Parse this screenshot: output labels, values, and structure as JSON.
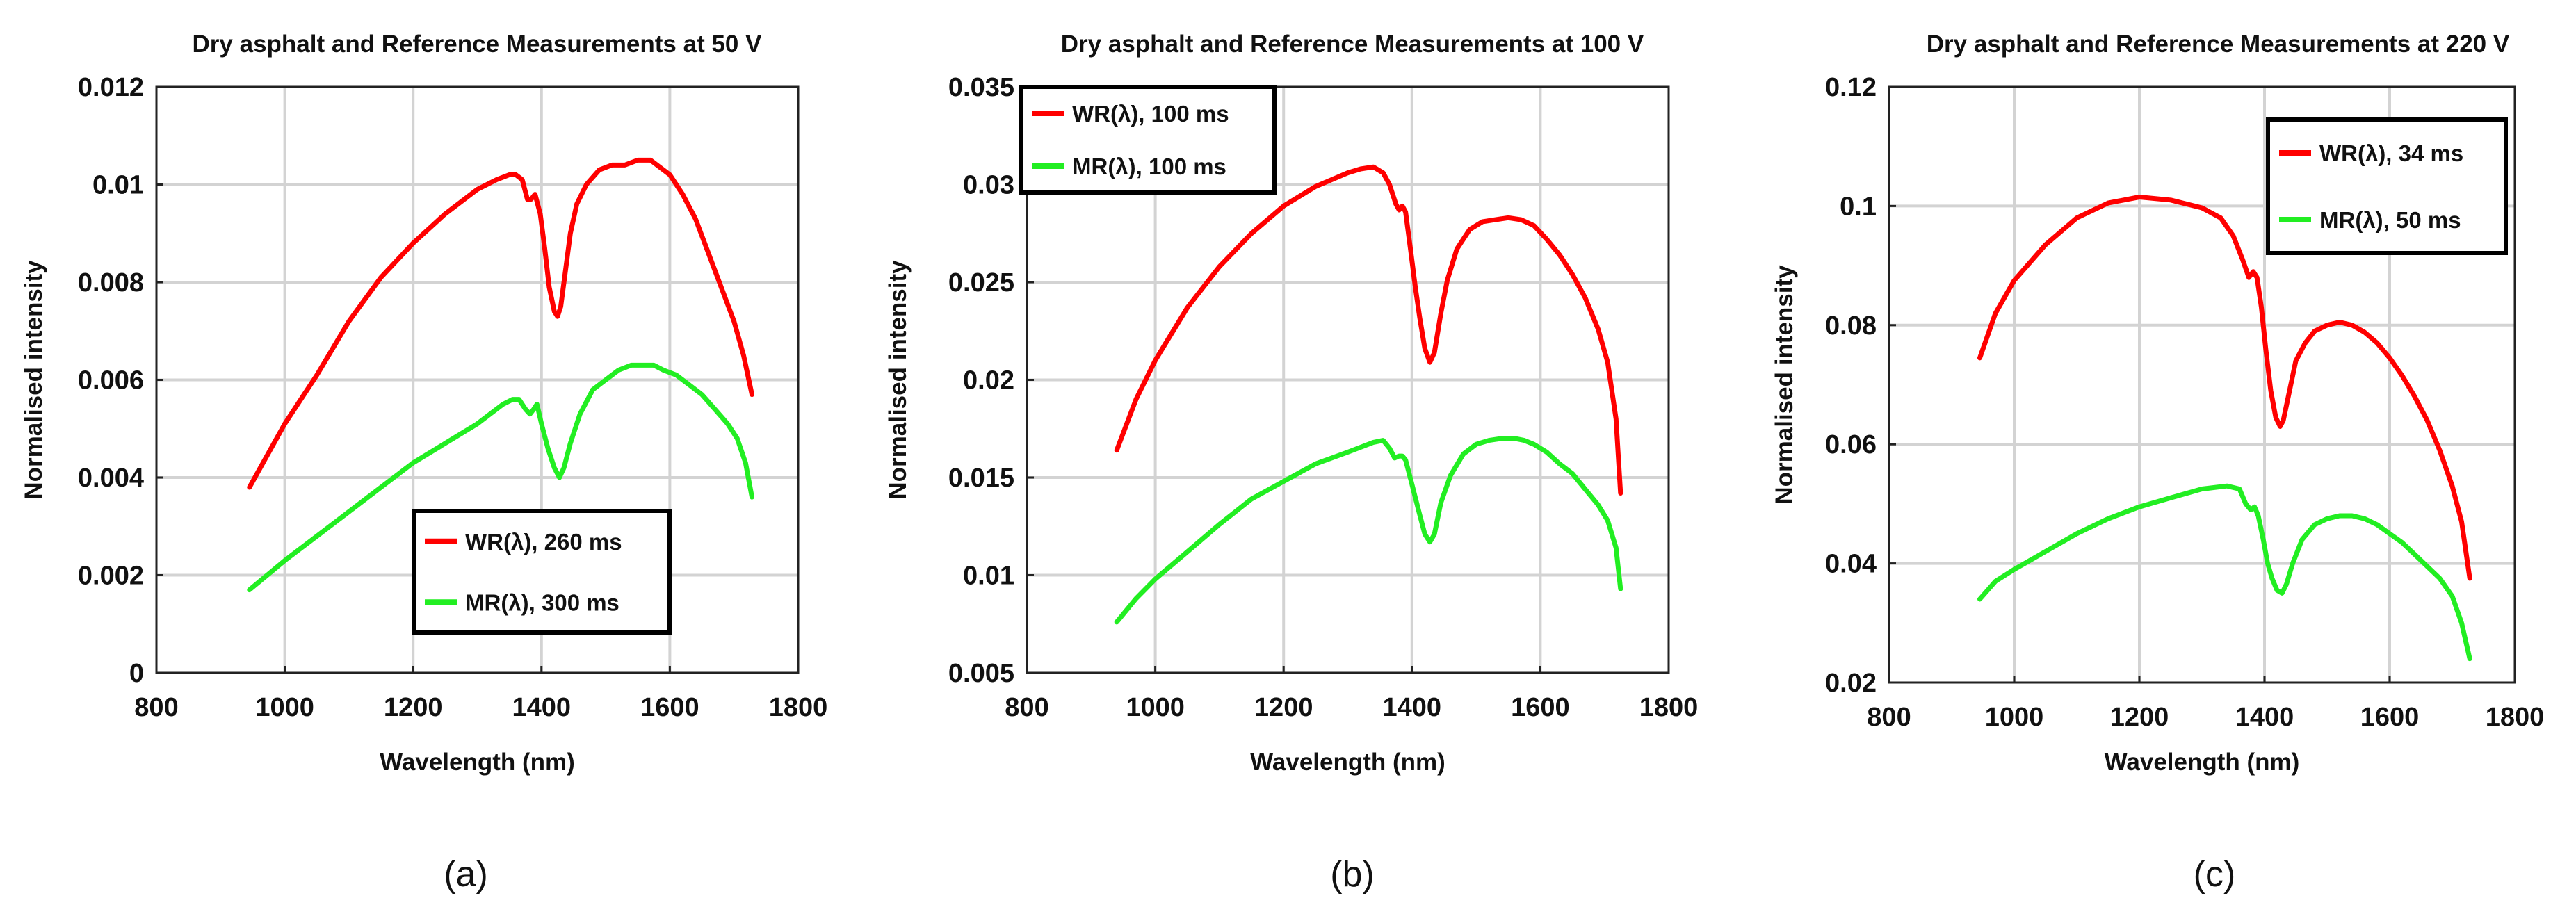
{
  "colors": {
    "wr": "#ff0000",
    "mr": "#22ee22",
    "grid": "#d3d3d3",
    "axis": "#222222"
  },
  "chart_data": [
    {
      "type": "line",
      "panel_label": "(a)",
      "title": "Dry asphalt and Reference Measurements at 50 V",
      "xlabel": "Wavelength (nm)",
      "ylabel": "Normalised intensity",
      "xlim": [
        800,
        1800
      ],
      "ylim": [
        0,
        0.012
      ],
      "xticks": [
        800,
        1000,
        1200,
        1400,
        1600,
        1800
      ],
      "xtick_labels": [
        "800",
        "1000",
        "1200",
        "1400",
        "1600",
        "1800"
      ],
      "yticks": [
        0,
        0.002,
        0.004,
        0.006,
        0.008,
        0.01,
        0.012
      ],
      "ytick_labels": [
        "0",
        "0.002",
        "0.004",
        "0.006",
        "0.008",
        "0.01",
        "0.012"
      ],
      "grid": true,
      "legend_position": "bottom-center",
      "series": [
        {
          "name": "WR(λ), 260 ms",
          "color": "wr",
          "x": [
            945,
            1000,
            1050,
            1100,
            1150,
            1200,
            1250,
            1300,
            1330,
            1350,
            1360,
            1370,
            1378,
            1384,
            1390,
            1398,
            1405,
            1412,
            1420,
            1425,
            1430,
            1438,
            1445,
            1455,
            1470,
            1490,
            1510,
            1530,
            1550,
            1560,
            1570,
            1580,
            1600,
            1620,
            1640,
            1660,
            1680,
            1700,
            1715,
            1728
          ],
          "y": [
            0.0038,
            0.0051,
            0.0061,
            0.0072,
            0.0081,
            0.0088,
            0.0094,
            0.0099,
            0.0101,
            0.0102,
            0.0102,
            0.0101,
            0.0097,
            0.0097,
            0.0098,
            0.0094,
            0.0087,
            0.0079,
            0.0074,
            0.0073,
            0.0075,
            0.0083,
            0.009,
            0.0096,
            0.01,
            0.0103,
            0.0104,
            0.0104,
            0.0105,
            0.0105,
            0.0105,
            0.0104,
            0.0102,
            0.0098,
            0.0093,
            0.0086,
            0.0079,
            0.0072,
            0.0065,
            0.0057
          ]
        },
        {
          "name": "MR(λ), 300 ms",
          "color": "mr",
          "x": [
            945,
            1000,
            1050,
            1100,
            1150,
            1200,
            1250,
            1300,
            1340,
            1355,
            1365,
            1375,
            1382,
            1388,
            1393,
            1400,
            1410,
            1420,
            1428,
            1435,
            1445,
            1460,
            1480,
            1500,
            1520,
            1540,
            1560,
            1575,
            1590,
            1610,
            1630,
            1650,
            1670,
            1690,
            1705,
            1718,
            1728
          ],
          "y": [
            0.0017,
            0.0023,
            0.0028,
            0.0033,
            0.0038,
            0.0043,
            0.0047,
            0.0051,
            0.0055,
            0.0056,
            0.0056,
            0.0054,
            0.0053,
            0.0054,
            0.0055,
            0.0051,
            0.0046,
            0.0042,
            0.004,
            0.0042,
            0.0047,
            0.0053,
            0.0058,
            0.006,
            0.0062,
            0.0063,
            0.0063,
            0.0063,
            0.0062,
            0.0061,
            0.0059,
            0.0057,
            0.0054,
            0.0051,
            0.0048,
            0.0043,
            0.0036
          ]
        }
      ]
    },
    {
      "type": "line",
      "panel_label": "(b)",
      "title": "Dry asphalt and Reference Measurements at 100 V",
      "xlabel": "Wavelength (nm)",
      "ylabel": "Normalised intensity",
      "xlim": [
        800,
        1800
      ],
      "ylim": [
        0.005,
        0.035
      ],
      "xticks": [
        800,
        1000,
        1200,
        1400,
        1600,
        1800
      ],
      "xtick_labels": [
        "800",
        "1000",
        "1200",
        "1400",
        "1600",
        "1800"
      ],
      "yticks": [
        0.005,
        0.01,
        0.015,
        0.02,
        0.025,
        0.03,
        0.035
      ],
      "ytick_labels": [
        "0.005",
        "0.01",
        "0.015",
        "0.02",
        "0.025",
        "0.03",
        "0.035"
      ],
      "grid": true,
      "legend_position": "top-left",
      "series": [
        {
          "name": "WR(λ), 100 ms",
          "color": "wr",
          "x": [
            940,
            970,
            1000,
            1050,
            1100,
            1150,
            1200,
            1250,
            1300,
            1320,
            1340,
            1355,
            1365,
            1375,
            1380,
            1385,
            1390,
            1398,
            1405,
            1412,
            1420,
            1428,
            1435,
            1445,
            1455,
            1470,
            1490,
            1510,
            1530,
            1550,
            1570,
            1590,
            1610,
            1630,
            1650,
            1670,
            1690,
            1705,
            1718,
            1725
          ],
          "y": [
            0.0164,
            0.019,
            0.021,
            0.0237,
            0.0258,
            0.0275,
            0.0289,
            0.0299,
            0.0306,
            0.0308,
            0.0309,
            0.0306,
            0.03,
            0.029,
            0.0287,
            0.0289,
            0.0286,
            0.0266,
            0.0248,
            0.0232,
            0.0216,
            0.0209,
            0.0214,
            0.0234,
            0.0251,
            0.0267,
            0.0277,
            0.0281,
            0.0282,
            0.0283,
            0.0282,
            0.0279,
            0.0272,
            0.0264,
            0.0254,
            0.0242,
            0.0226,
            0.0209,
            0.018,
            0.0142
          ]
        },
        {
          "name": "MR(λ), 100 ms",
          "color": "mr",
          "x": [
            940,
            970,
            1000,
            1050,
            1100,
            1150,
            1200,
            1250,
            1300,
            1340,
            1355,
            1365,
            1373,
            1380,
            1385,
            1390,
            1398,
            1405,
            1412,
            1420,
            1428,
            1435,
            1445,
            1460,
            1480,
            1500,
            1520,
            1540,
            1560,
            1575,
            1590,
            1610,
            1630,
            1650,
            1670,
            1690,
            1705,
            1718,
            1725
          ],
          "y": [
            0.0076,
            0.0088,
            0.0098,
            0.0112,
            0.0126,
            0.0139,
            0.0148,
            0.0157,
            0.0163,
            0.0168,
            0.0169,
            0.0165,
            0.016,
            0.0161,
            0.0161,
            0.0159,
            0.0149,
            0.014,
            0.0131,
            0.0121,
            0.0117,
            0.0121,
            0.0137,
            0.0151,
            0.0162,
            0.0167,
            0.0169,
            0.017,
            0.017,
            0.0169,
            0.0167,
            0.0163,
            0.0157,
            0.0152,
            0.0144,
            0.0136,
            0.0128,
            0.0114,
            0.0093
          ]
        }
      ]
    },
    {
      "type": "line",
      "panel_label": "(c)",
      "title": "Dry asphalt and Reference Measurements at 220 V",
      "xlabel": "Wavelength (nm)",
      "ylabel": "Normalised intensity",
      "xlim": [
        800,
        1800
      ],
      "ylim": [
        0.02,
        0.12
      ],
      "xticks": [
        800,
        1000,
        1200,
        1400,
        1600,
        1800
      ],
      "xtick_labels": [
        "800",
        "1000",
        "1200",
        "1400",
        "1600",
        "1800"
      ],
      "yticks": [
        0.02,
        0.04,
        0.06,
        0.08,
        0.1,
        0.12
      ],
      "ytick_labels": [
        "0.02",
        "0.04",
        "0.06",
        "0.08",
        "0.1",
        "0.12"
      ],
      "grid": true,
      "legend_position": "top-right",
      "series": [
        {
          "name": "WR(λ), 34 ms",
          "color": "wr",
          "x": [
            945,
            970,
            1000,
            1050,
            1100,
            1150,
            1200,
            1250,
            1300,
            1330,
            1350,
            1365,
            1375,
            1382,
            1388,
            1395,
            1402,
            1410,
            1418,
            1425,
            1430,
            1440,
            1450,
            1465,
            1480,
            1500,
            1520,
            1540,
            1560,
            1580,
            1600,
            1620,
            1640,
            1660,
            1680,
            1700,
            1715,
            1728
          ],
          "y": [
            0.0745,
            0.082,
            0.0875,
            0.0935,
            0.098,
            0.1005,
            0.1015,
            0.101,
            0.0997,
            0.098,
            0.095,
            0.091,
            0.088,
            0.089,
            0.088,
            0.083,
            0.076,
            0.069,
            0.0645,
            0.063,
            0.064,
            0.069,
            0.074,
            0.077,
            0.079,
            0.08,
            0.0805,
            0.08,
            0.0788,
            0.077,
            0.0745,
            0.0715,
            0.068,
            0.064,
            0.059,
            0.053,
            0.047,
            0.0375
          ]
        },
        {
          "name": "MR(λ), 50 ms",
          "color": "mr",
          "x": [
            945,
            970,
            1000,
            1050,
            1100,
            1150,
            1200,
            1250,
            1300,
            1340,
            1360,
            1370,
            1378,
            1384,
            1390,
            1398,
            1405,
            1412,
            1420,
            1428,
            1435,
            1445,
            1460,
            1480,
            1500,
            1520,
            1540,
            1560,
            1580,
            1600,
            1620,
            1640,
            1660,
            1680,
            1700,
            1715,
            1728
          ],
          "y": [
            0.034,
            0.037,
            0.039,
            0.042,
            0.045,
            0.0475,
            0.0495,
            0.051,
            0.0525,
            0.053,
            0.0525,
            0.05,
            0.049,
            0.0495,
            0.048,
            0.044,
            0.04,
            0.0375,
            0.0355,
            0.035,
            0.0365,
            0.04,
            0.044,
            0.0465,
            0.0475,
            0.048,
            0.048,
            0.0475,
            0.0465,
            0.045,
            0.0435,
            0.0415,
            0.0395,
            0.0375,
            0.0345,
            0.03,
            0.024
          ]
        }
      ]
    }
  ]
}
